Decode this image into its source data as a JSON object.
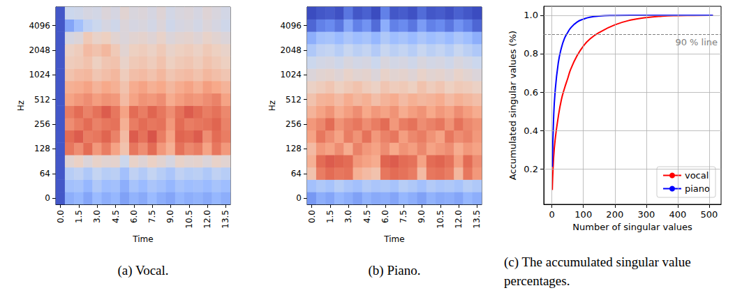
{
  "chart_data": [
    {
      "type": "heatmap",
      "caption": "(a) Vocal.",
      "x_label": "Time",
      "y_label": "Hz",
      "categories": [
        "0.0",
        null,
        "1.5",
        null,
        "3.0",
        null,
        "4.5",
        null,
        "6.0",
        null,
        "7.5",
        null,
        "9.0",
        null,
        "10.5",
        null,
        "12.0",
        null,
        "13.5"
      ],
      "y_categories": [
        "0",
        null,
        "64",
        null,
        "128",
        null,
        "256",
        null,
        "512",
        null,
        "1024",
        null,
        "2048",
        null,
        "4096",
        null
      ],
      "value_range": [
        -80,
        0
      ],
      "cells": [
        [
          -78,
          -60,
          -58,
          -62,
          -57,
          -60,
          -58,
          -63,
          -59,
          -61,
          -57,
          -60,
          -62,
          -58,
          -60,
          -59,
          -61,
          -58,
          -60
        ],
        [
          -78,
          -55,
          -54,
          -58,
          -52,
          -56,
          -55,
          -60,
          -54,
          -57,
          -53,
          -55,
          -58,
          -54,
          -56,
          -55,
          -57,
          -54,
          -56
        ],
        [
          -78,
          -50,
          -48,
          -52,
          -47,
          -50,
          -49,
          -55,
          -48,
          -51,
          -47,
          -50,
          -53,
          -48,
          -50,
          -49,
          -52,
          -48,
          -50
        ],
        [
          -78,
          -38,
          -35,
          -40,
          -36,
          -38,
          -37,
          -45,
          -36,
          -39,
          -35,
          -38,
          -42,
          -36,
          -38,
          -37,
          -40,
          -36,
          -38
        ],
        [
          -78,
          -14,
          -18,
          -12,
          -20,
          -15,
          -22,
          -30,
          -14,
          -18,
          -12,
          -20,
          -25,
          -13,
          -17,
          -15,
          -22,
          -14,
          -20
        ],
        [
          -78,
          -12,
          -10,
          -15,
          -14,
          -11,
          -16,
          -28,
          -10,
          -13,
          -9,
          -15,
          -22,
          -11,
          -12,
          -10,
          -18,
          -12,
          -15
        ],
        [
          -78,
          -18,
          -15,
          -12,
          -16,
          -14,
          -13,
          -25,
          -15,
          -12,
          -14,
          -13,
          -20,
          -12,
          -15,
          -14,
          -13,
          -11,
          -16
        ],
        [
          -78,
          -15,
          -12,
          -16,
          -13,
          -10,
          -14,
          -22,
          -12,
          -15,
          -11,
          -14,
          -18,
          -13,
          -10,
          -12,
          -15,
          -13,
          -17
        ],
        [
          -78,
          -22,
          -20,
          -18,
          -21,
          -19,
          -20,
          -28,
          -22,
          -19,
          -20,
          -18,
          -24,
          -21,
          -19,
          -20,
          -18,
          -16,
          -22
        ],
        [
          -78,
          -25,
          -24,
          -22,
          -26,
          -23,
          -25,
          -30,
          -24,
          -22,
          -25,
          -23,
          -27,
          -24,
          -22,
          -25,
          -21,
          -23,
          -26
        ],
        [
          -78,
          -30,
          -28,
          -27,
          -31,
          -29,
          -27,
          -33,
          -29,
          -28,
          -30,
          -27,
          -31,
          -29,
          -28,
          -30,
          -27,
          -29,
          -31
        ],
        [
          -78,
          -33,
          -32,
          -30,
          -34,
          -31,
          -30,
          -36,
          -32,
          -31,
          -33,
          -30,
          -34,
          -32,
          -31,
          -33,
          -30,
          -32,
          -34
        ],
        [
          -78,
          -35,
          -33,
          -28,
          -30,
          -27,
          -32,
          -38,
          -34,
          -33,
          -35,
          -32,
          -36,
          -34,
          -33,
          -35,
          -32,
          -34,
          -36
        ],
        [
          -78,
          -42,
          -40,
          -32,
          -36,
          -34,
          -38,
          -40,
          -38,
          -37,
          -39,
          -36,
          -40,
          -38,
          -37,
          -39,
          -36,
          -38,
          -40
        ],
        [
          -78,
          -62,
          -55,
          -48,
          -45,
          -42,
          -44,
          -40,
          -42,
          -41,
          -43,
          -40,
          -44,
          -42,
          -41,
          -43,
          -40,
          -42,
          -44
        ],
        [
          -78,
          -45,
          -44,
          -42,
          -43,
          -40,
          -42,
          -38,
          -41,
          -40,
          -42,
          -39,
          -43,
          -41,
          -40,
          -42,
          -39,
          -41,
          -43
        ]
      ]
    },
    {
      "type": "heatmap",
      "caption": "(b) Piano.",
      "x_label": "Time",
      "y_label": "Hz",
      "categories": [
        "0.0",
        null,
        "1.5",
        null,
        "3.0",
        null,
        "4.5",
        null,
        "6.0",
        null,
        "7.5",
        null,
        "9.0",
        null,
        "10.5",
        null,
        "12.0",
        null,
        "13.5"
      ],
      "y_categories": [
        "0",
        null,
        "64",
        null,
        "128",
        null,
        "256",
        null,
        "512",
        null,
        "1024",
        null,
        "2048",
        null,
        "4096",
        null
      ],
      "value_range": [
        -80,
        0
      ],
      "cells": [
        [
          -65,
          -60,
          -62,
          -58,
          -60,
          -63,
          -59,
          -61,
          -60,
          -62,
          -58,
          -60,
          -63,
          -59,
          -61,
          -60,
          -62,
          -58,
          -60
        ],
        [
          -55,
          -52,
          -54,
          -50,
          -53,
          -55,
          -51,
          -53,
          -52,
          -54,
          -50,
          -52,
          -55,
          -51,
          -53,
          -52,
          -54,
          -50,
          -52
        ],
        [
          -30,
          -15,
          -12,
          -14,
          -13,
          -25,
          -28,
          -30,
          -14,
          -12,
          -13,
          -15,
          -28,
          -14,
          -13,
          -15,
          -27,
          -14,
          -20
        ],
        [
          -25,
          -12,
          -10,
          -11,
          -12,
          -20,
          -22,
          -24,
          -11,
          -10,
          -12,
          -13,
          -22,
          -12,
          -11,
          -13,
          -21,
          -12,
          -18
        ],
        [
          -28,
          -20,
          -22,
          -18,
          -24,
          -16,
          -20,
          -22,
          -18,
          -23,
          -19,
          -21,
          -17,
          -22,
          -20,
          -18,
          -24,
          -20,
          -22
        ],
        [
          -22,
          -14,
          -18,
          -22,
          -15,
          -19,
          -13,
          -20,
          -16,
          -14,
          -21,
          -17,
          -15,
          -19,
          -22,
          -14,
          -18,
          -16,
          -20
        ],
        [
          -20,
          -17,
          -12,
          -19,
          -16,
          -14,
          -18,
          -15,
          -12,
          -20,
          -15,
          -13,
          -18,
          -16,
          -14,
          -19,
          -13,
          -17,
          -19
        ],
        [
          -26,
          -22,
          -19,
          -24,
          -21,
          -18,
          -23,
          -20,
          -22,
          -19,
          -24,
          -21,
          -19,
          -23,
          -20,
          -22,
          -18,
          -21,
          -24
        ],
        [
          -30,
          -26,
          -25,
          -28,
          -24,
          -27,
          -25,
          -29,
          -26,
          -24,
          -28,
          -25,
          -27,
          -26,
          -24,
          -28,
          -25,
          -27,
          -29
        ],
        [
          -35,
          -33,
          -31,
          -34,
          -32,
          -30,
          -33,
          -35,
          -31,
          -33,
          -32,
          -34,
          -30,
          -33,
          -31,
          -34,
          -32,
          -33,
          -35
        ],
        [
          -40,
          -38,
          -37,
          -39,
          -36,
          -38,
          -37,
          -40,
          -36,
          -38,
          -37,
          -39,
          -36,
          -38,
          -37,
          -39,
          -36,
          -38,
          -40
        ],
        [
          -45,
          -43,
          -42,
          -44,
          -41,
          -43,
          -42,
          -45,
          -41,
          -43,
          -42,
          -44,
          -41,
          -43,
          -42,
          -44,
          -41,
          -43,
          -45
        ],
        [
          -52,
          -48,
          -47,
          -50,
          -46,
          -49,
          -47,
          -51,
          -46,
          -49,
          -47,
          -50,
          -46,
          -49,
          -47,
          -50,
          -46,
          -49,
          -52
        ],
        [
          -60,
          -55,
          -54,
          -57,
          -53,
          -56,
          -54,
          -58,
          -52,
          -56,
          -54,
          -57,
          -53,
          -56,
          -54,
          -57,
          -53,
          -56,
          -60
        ],
        [
          -75,
          -70,
          -68,
          -72,
          -62,
          -70,
          -66,
          -74,
          -60,
          -70,
          -68,
          -72,
          -64,
          -70,
          -68,
          -72,
          -66,
          -70,
          -75
        ],
        [
          -80,
          -78,
          -77,
          -79,
          -72,
          -78,
          -76,
          -80,
          -70,
          -78,
          -77,
          -79,
          -74,
          -78,
          -77,
          -79,
          -76,
          -78,
          -80
        ]
      ]
    },
    {
      "type": "line",
      "caption": "(c) The accumulated singular value percentages.",
      "x_label": "Number of singular values",
      "y_label": "Accumulated singular values (%)",
      "xlim": [
        -26,
        538
      ],
      "ylim": [
        0.015,
        1.047
      ],
      "xticks": [
        0,
        100,
        200,
        300,
        400,
        500
      ],
      "yticks": [
        0.2,
        0.4,
        0.6,
        0.8,
        {
          "value": 1,
          "label": "1.0"
        }
      ],
      "grid": true,
      "legend": "lower right",
      "x": [
        1,
        5,
        10,
        20,
        30,
        40,
        50,
        60,
        80,
        100,
        120,
        150,
        200,
        250,
        300,
        350,
        400,
        450,
        512
      ],
      "series": [
        {
          "name": "vocal",
          "color": "#ff0000",
          "values": [
            0.09,
            0.25,
            0.35,
            0.47,
            0.56,
            0.62,
            0.67,
            0.72,
            0.79,
            0.84,
            0.875,
            0.91,
            0.95,
            0.975,
            0.988,
            0.995,
            0.998,
            0.999,
            1.0
          ]
        },
        {
          "name": "piano",
          "color": "#0000ff",
          "values": [
            0.21,
            0.45,
            0.6,
            0.75,
            0.83,
            0.88,
            0.91,
            0.935,
            0.965,
            0.98,
            0.99,
            0.996,
            0.999,
            1.0,
            1.0,
            1.0,
            1.0,
            1.0,
            1.0
          ]
        }
      ],
      "hline": {
        "value": 0.9,
        "label": "90 % line",
        "line_style": "dashed"
      }
    }
  ]
}
